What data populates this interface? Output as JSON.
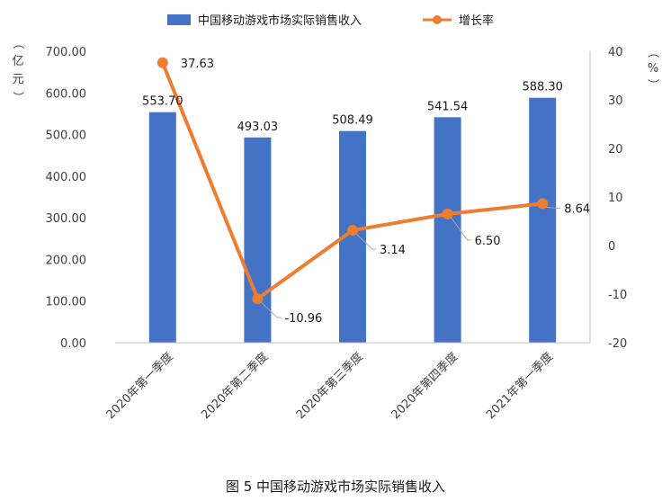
{
  "chart_data": {
    "type": "bar",
    "categories": [
      "2020年第一季度",
      "2020年第二季度",
      "2020年第三季度",
      "2020年第四季度",
      "2021年第一季度"
    ],
    "series": [
      {
        "name": "中国移动游戏市场实际销售收入",
        "type": "bar",
        "axis": "left",
        "values": [
          553.7,
          493.03,
          508.49,
          541.54,
          588.3
        ],
        "labels": [
          "553.70",
          "493.03",
          "508.49",
          "541.54",
          "588.30"
        ]
      },
      {
        "name": "增长率",
        "type": "line",
        "axis": "right",
        "values": [
          37.63,
          -10.96,
          3.14,
          6.5,
          8.64
        ],
        "labels": [
          "37.63",
          "-10.96",
          "3.14",
          "6.50",
          "8.64"
        ]
      }
    ],
    "y_left": {
      "unit_label": "（亿元）",
      "ylim": [
        0,
        700
      ],
      "ticks": [
        "0.00",
        "100.00",
        "200.00",
        "300.00",
        "400.00",
        "500.00",
        "600.00",
        "700.00"
      ]
    },
    "y_right": {
      "unit_label": "（%）",
      "ylim": [
        -20,
        40
      ],
      "ticks": [
        "-20",
        "-10",
        "0",
        "10",
        "20",
        "30",
        "40"
      ]
    },
    "legend_position": "top",
    "grid": false,
    "caption": "图 5  中国移动游戏市场实际销售收入",
    "colors": {
      "bar": "#4472C4",
      "line": "#ED7D31"
    }
  }
}
